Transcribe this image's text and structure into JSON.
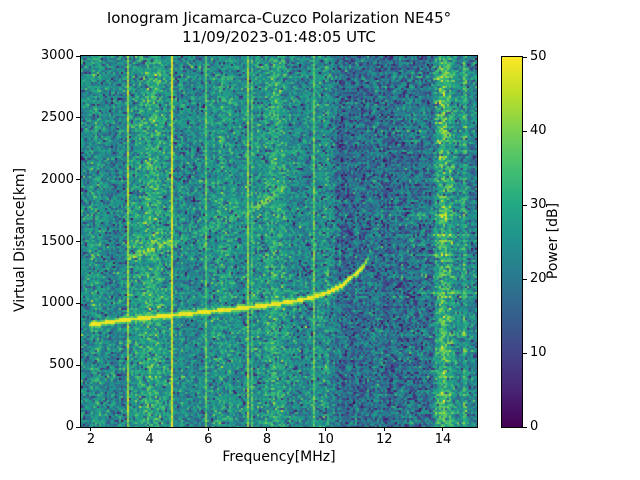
{
  "figure": {
    "title_line1": "Ionogram Jicamarca-Cuzco Polarization NE45°",
    "title_line2": "11/09/2023-01:48:05 UTC"
  },
  "axes": {
    "xlabel": "Frequency[MHz]",
    "ylabel": "Virtual Distance[km]",
    "x_ticks": [
      2,
      4,
      6,
      8,
      10,
      12,
      14
    ],
    "y_ticks": [
      0,
      500,
      1000,
      1500,
      2000,
      2500,
      3000
    ],
    "x_range": [
      1.66,
      15.16
    ],
    "y_range": [
      0,
      3000
    ]
  },
  "colorbar": {
    "label": "Power [dB]",
    "ticks": [
      0,
      10,
      20,
      30,
      40,
      50
    ],
    "range": [
      0,
      50
    ],
    "colormap": "viridis"
  },
  "chart_data": {
    "type": "heatmap",
    "title": "Ionogram Jicamarca-Cuzco Polarization NE45° 11/09/2023-01:48:05 UTC",
    "xlabel": "Frequency[MHz]",
    "ylabel": "Virtual Distance[km]",
    "xlim": [
      1.66,
      15.16
    ],
    "ylim": [
      0,
      3000
    ],
    "colorbar_label": "Power [dB]",
    "clim": [
      0,
      50
    ],
    "legend": "none",
    "grid": false,
    "render": {
      "seed": 1337,
      "noise": {
        "mean": 23.5,
        "std": 5.2,
        "dark_prob": 0.07,
        "dark_min": 2,
        "dark_max": 14
      },
      "quiet_band": {
        "from": 10.35,
        "to": 13.7,
        "mean_drop": 3.5,
        "dark_prob": 0.16
      },
      "col_noise": 1.3,
      "row_noise": 1.0,
      "row_noise_right_boost": 2.0,
      "right_boost_from": 12.0,
      "rfi_lines": [
        {
          "f": 3.28,
          "db": 42,
          "jitter": 5
        },
        {
          "f": 4.78,
          "db": 46,
          "jitter": 4
        },
        {
          "f": 5.93,
          "db": 36,
          "jitter": 6
        },
        {
          "f": 7.33,
          "db": 40,
          "jitter": 5
        },
        {
          "f": 7.52,
          "db": 33,
          "jitter": 7
        },
        {
          "f": 9.62,
          "db": 37,
          "jitter": 6
        }
      ],
      "interference_bands": [
        {
          "f": 2.1,
          "sigma": 0.18,
          "amp": 5
        },
        {
          "f": 4.1,
          "sigma": 0.38,
          "amp": 9
        },
        {
          "f": 6.55,
          "sigma": 0.25,
          "amp": 5
        },
        {
          "f": 8.3,
          "sigma": 0.3,
          "amp": 8
        },
        {
          "f": 10.08,
          "sigma": 0.06,
          "amp": 6
        },
        {
          "f": 14.05,
          "sigma": 0.24,
          "amp": 13
        },
        {
          "f": 14.75,
          "sigma": 0.06,
          "amp": 9
        }
      ],
      "main_trace": {
        "name": "F-region echo trace",
        "points": [
          [
            1.95,
            826
          ],
          [
            3.0,
            862
          ],
          [
            4.0,
            886
          ],
          [
            5.0,
            908
          ],
          [
            6.0,
            933
          ],
          [
            7.0,
            957
          ],
          [
            8.0,
            984
          ],
          [
            9.0,
            1020
          ],
          [
            9.6,
            1050
          ],
          [
            10.15,
            1095
          ],
          [
            10.6,
            1150
          ],
          [
            11.0,
            1235
          ],
          [
            11.3,
            1300
          ],
          [
            11.45,
            1365
          ],
          [
            11.55,
            1450
          ]
        ],
        "peak_db": 50,
        "core_km": 14,
        "glow_km": 30,
        "fade_from": 11.2,
        "fade_rate": 0.8,
        "fade_min": 0.7
      },
      "upper_trace": {
        "name": "diffuse second echo trace",
        "points": [
          [
            3.2,
            1375
          ],
          [
            3.7,
            1410
          ],
          [
            4.2,
            1450
          ],
          [
            4.7,
            1490
          ],
          [
            5.2,
            1530
          ],
          [
            5.7,
            1570
          ],
          [
            6.2,
            1620
          ],
          [
            6.7,
            1675
          ],
          [
            7.2,
            1730
          ],
          [
            7.7,
            1790
          ],
          [
            8.2,
            1870
          ],
          [
            8.7,
            1960
          ]
        ],
        "core_db": 38,
        "spread_km": 165,
        "amp_breaks": [
          [
            3.2,
            1.0
          ],
          [
            4.8,
            0.78
          ],
          [
            7.3,
            0.93
          ]
        ]
      }
    }
  }
}
